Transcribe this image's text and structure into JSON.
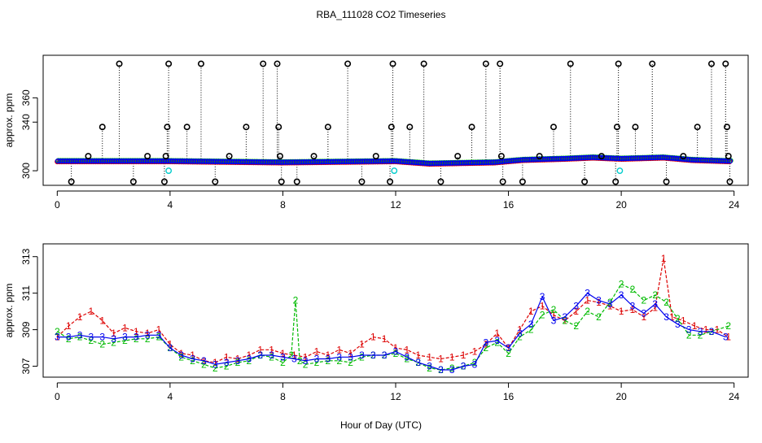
{
  "figure": {
    "title": "RBA_111028  CO2 Timeseries",
    "xlabel": "Hour of Day (UTC)"
  },
  "colors": {
    "series1": "#dd0000",
    "series2": "#00bb00",
    "series3": "#0000ee",
    "spike_marker": "#000000",
    "cyan_marker": "#00cccc",
    "axis": "#000000"
  },
  "chart_data": [
    {
      "type": "scatter",
      "panel": "top",
      "ylabel": "approx. ppm",
      "xlim": [
        -0.5,
        24.5
      ],
      "ylim": [
        288,
        395
      ],
      "xticks": [
        0,
        4,
        8,
        12,
        16,
        20,
        24
      ],
      "yticks": [
        300,
        340,
        360
      ],
      "baseline": [
        {
          "x": 0.0,
          "y": 308
        },
        {
          "x": 4.0,
          "y": 308
        },
        {
          "x": 8.0,
          "y": 307
        },
        {
          "x": 12.0,
          "y": 308
        },
        {
          "x": 13.2,
          "y": 306
        },
        {
          "x": 15.5,
          "y": 307
        },
        {
          "x": 16.5,
          "y": 309
        },
        {
          "x": 18.0,
          "y": 310
        },
        {
          "x": 19.0,
          "y": 311
        },
        {
          "x": 20.0,
          "y": 310
        },
        {
          "x": 21.5,
          "y": 311
        },
        {
          "x": 22.5,
          "y": 309
        },
        {
          "x": 23.8,
          "y": 308
        }
      ],
      "spikes": [
        {
          "x": 0.5,
          "y": 291
        },
        {
          "x": 1.1,
          "y": 312
        },
        {
          "x": 1.6,
          "y": 336
        },
        {
          "x": 2.2,
          "y": 388
        },
        {
          "x": 2.7,
          "y": 291
        },
        {
          "x": 3.2,
          "y": 312
        },
        {
          "x": 3.8,
          "y": 291
        },
        {
          "x": 3.85,
          "y": 312
        },
        {
          "x": 3.9,
          "y": 336
        },
        {
          "x": 3.95,
          "y": 388
        },
        {
          "x": 4.6,
          "y": 336
        },
        {
          "x": 5.1,
          "y": 388
        },
        {
          "x": 5.6,
          "y": 291
        },
        {
          "x": 6.1,
          "y": 312
        },
        {
          "x": 6.7,
          "y": 336
        },
        {
          "x": 7.3,
          "y": 388
        },
        {
          "x": 7.8,
          "y": 388
        },
        {
          "x": 7.85,
          "y": 336
        },
        {
          "x": 7.9,
          "y": 312
        },
        {
          "x": 7.95,
          "y": 291
        },
        {
          "x": 8.5,
          "y": 291
        },
        {
          "x": 9.1,
          "y": 312
        },
        {
          "x": 9.6,
          "y": 336
        },
        {
          "x": 10.3,
          "y": 388
        },
        {
          "x": 10.8,
          "y": 291
        },
        {
          "x": 11.3,
          "y": 312
        },
        {
          "x": 11.8,
          "y": 291
        },
        {
          "x": 11.85,
          "y": 336
        },
        {
          "x": 11.9,
          "y": 388
        },
        {
          "x": 12.5,
          "y": 336
        },
        {
          "x": 13.0,
          "y": 388
        },
        {
          "x": 13.6,
          "y": 291
        },
        {
          "x": 14.2,
          "y": 312
        },
        {
          "x": 14.7,
          "y": 336
        },
        {
          "x": 15.2,
          "y": 388
        },
        {
          "x": 15.7,
          "y": 388
        },
        {
          "x": 15.75,
          "y": 312
        },
        {
          "x": 15.8,
          "y": 291
        },
        {
          "x": 16.5,
          "y": 291
        },
        {
          "x": 17.1,
          "y": 312
        },
        {
          "x": 17.6,
          "y": 336
        },
        {
          "x": 18.2,
          "y": 388
        },
        {
          "x": 18.7,
          "y": 291
        },
        {
          "x": 19.3,
          "y": 312
        },
        {
          "x": 19.8,
          "y": 291
        },
        {
          "x": 19.85,
          "y": 336
        },
        {
          "x": 19.9,
          "y": 388
        },
        {
          "x": 20.5,
          "y": 336
        },
        {
          "x": 21.1,
          "y": 388
        },
        {
          "x": 21.6,
          "y": 291
        },
        {
          "x": 22.2,
          "y": 312
        },
        {
          "x": 22.7,
          "y": 336
        },
        {
          "x": 23.2,
          "y": 388
        },
        {
          "x": 23.7,
          "y": 388
        },
        {
          "x": 23.75,
          "y": 336
        },
        {
          "x": 23.8,
          "y": 312
        },
        {
          "x": 23.85,
          "y": 291
        }
      ],
      "cyan_points": [
        {
          "x": 3.95,
          "y": 300
        },
        {
          "x": 11.95,
          "y": 300
        },
        {
          "x": 19.95,
          "y": 300
        }
      ]
    },
    {
      "type": "line",
      "panel": "bottom",
      "ylabel": "approx. ppm",
      "xlim": [
        -0.5,
        24.5
      ],
      "ylim": [
        306.4,
        313.7
      ],
      "xticks": [
        0,
        4,
        8,
        12,
        16,
        20,
        24
      ],
      "yticks": [
        307,
        309,
        311,
        313
      ],
      "series": [
        {
          "name": "1",
          "color_key": "series1",
          "x": [
            0.0,
            0.4,
            0.8,
            1.2,
            1.6,
            2.0,
            2.4,
            2.8,
            3.2,
            3.6,
            4.0,
            4.4,
            4.8,
            5.2,
            5.6,
            6.0,
            6.4,
            6.8,
            7.2,
            7.6,
            8.0,
            8.4,
            8.8,
            9.2,
            9.6,
            10.0,
            10.4,
            10.8,
            11.2,
            11.6,
            12.0,
            12.4,
            12.8,
            13.2,
            13.6,
            14.0,
            14.4,
            14.8,
            15.2,
            15.6,
            16.0,
            16.4,
            16.8,
            17.2,
            17.6,
            18.0,
            18.4,
            18.8,
            19.2,
            19.6,
            20.0,
            20.4,
            20.8,
            21.2,
            21.5,
            21.8,
            22.2,
            22.6,
            23.0,
            23.4,
            23.8
          ],
          "values": [
            308.6,
            309.2,
            309.7,
            310.0,
            309.5,
            308.8,
            309.1,
            308.9,
            308.8,
            309.0,
            308.2,
            307.7,
            307.6,
            307.3,
            307.2,
            307.5,
            307.4,
            307.6,
            307.9,
            307.9,
            307.7,
            307.6,
            307.5,
            307.8,
            307.6,
            307.9,
            307.7,
            308.2,
            308.6,
            308.5,
            308.0,
            307.9,
            307.6,
            307.5,
            307.4,
            307.5,
            307.6,
            307.8,
            308.2,
            308.8,
            308.0,
            309.0,
            310.0,
            310.3,
            309.8,
            309.5,
            310.0,
            310.6,
            310.5,
            310.3,
            310.0,
            310.1,
            309.7,
            310.2,
            312.9,
            309.7,
            309.5,
            309.2,
            309.0,
            309.0,
            308.6
          ]
        },
        {
          "name": "2",
          "color_key": "series2",
          "x": [
            0.0,
            0.4,
            0.8,
            1.2,
            1.6,
            2.0,
            2.4,
            2.8,
            3.2,
            3.6,
            4.0,
            4.4,
            4.8,
            5.2,
            5.6,
            6.0,
            6.4,
            6.8,
            7.2,
            7.6,
            8.0,
            8.3,
            8.45,
            8.6,
            8.8,
            9.2,
            9.6,
            10.0,
            10.4,
            10.8,
            11.2,
            11.6,
            12.0,
            12.4,
            12.8,
            13.2,
            13.6,
            14.0,
            14.4,
            14.8,
            15.2,
            15.6,
            16.0,
            16.4,
            16.8,
            17.2,
            17.6,
            18.0,
            18.4,
            18.8,
            19.2,
            19.6,
            20.0,
            20.4,
            20.8,
            21.2,
            21.6,
            22.0,
            22.4,
            22.8,
            23.2,
            23.8
          ],
          "values": [
            308.9,
            308.5,
            308.6,
            308.4,
            308.2,
            308.3,
            308.4,
            308.5,
            308.5,
            308.6,
            308.0,
            307.5,
            307.3,
            307.1,
            306.9,
            307.0,
            307.2,
            307.3,
            307.6,
            307.5,
            307.2,
            307.6,
            310.6,
            307.3,
            307.1,
            307.2,
            307.3,
            307.3,
            307.2,
            307.5,
            307.6,
            307.6,
            307.7,
            307.4,
            307.2,
            306.9,
            306.8,
            306.9,
            307.0,
            307.2,
            308.0,
            308.3,
            307.7,
            308.6,
            309.0,
            309.8,
            310.1,
            309.5,
            309.2,
            310.0,
            309.7,
            310.5,
            311.5,
            311.2,
            310.6,
            310.9,
            310.5,
            309.6,
            308.7,
            308.7,
            308.9,
            309.2
          ]
        },
        {
          "name": "3",
          "color_key": "series3",
          "x": [
            0.0,
            0.4,
            0.8,
            1.2,
            1.6,
            2.0,
            2.4,
            2.8,
            3.2,
            3.6,
            4.0,
            4.4,
            4.8,
            5.2,
            5.6,
            6.0,
            6.4,
            6.8,
            7.2,
            7.6,
            8.0,
            8.4,
            8.8,
            9.2,
            9.6,
            10.0,
            10.4,
            10.8,
            11.2,
            11.6,
            12.0,
            12.4,
            12.8,
            13.2,
            13.6,
            14.0,
            14.4,
            14.8,
            15.2,
            15.6,
            16.0,
            16.4,
            16.8,
            17.2,
            17.6,
            18.0,
            18.4,
            18.8,
            19.2,
            19.6,
            20.0,
            20.4,
            20.8,
            21.2,
            21.6,
            22.0,
            22.4,
            22.8,
            23.2,
            23.7
          ],
          "values": [
            308.6,
            308.6,
            308.7,
            308.6,
            308.6,
            308.5,
            308.6,
            308.6,
            308.7,
            308.7,
            308.0,
            307.6,
            307.4,
            307.3,
            307.1,
            307.2,
            307.3,
            307.4,
            307.6,
            307.6,
            307.5,
            307.4,
            307.3,
            307.4,
            307.4,
            307.5,
            307.5,
            307.6,
            307.6,
            307.6,
            307.8,
            307.5,
            307.2,
            307.0,
            306.8,
            306.8,
            307.0,
            307.1,
            308.3,
            308.4,
            308.0,
            308.8,
            309.3,
            310.8,
            309.5,
            309.7,
            310.3,
            311.0,
            310.6,
            310.4,
            310.9,
            310.3,
            309.9,
            310.4,
            309.7,
            309.3,
            309.0,
            308.9,
            308.9,
            308.6
          ]
        }
      ]
    }
  ]
}
